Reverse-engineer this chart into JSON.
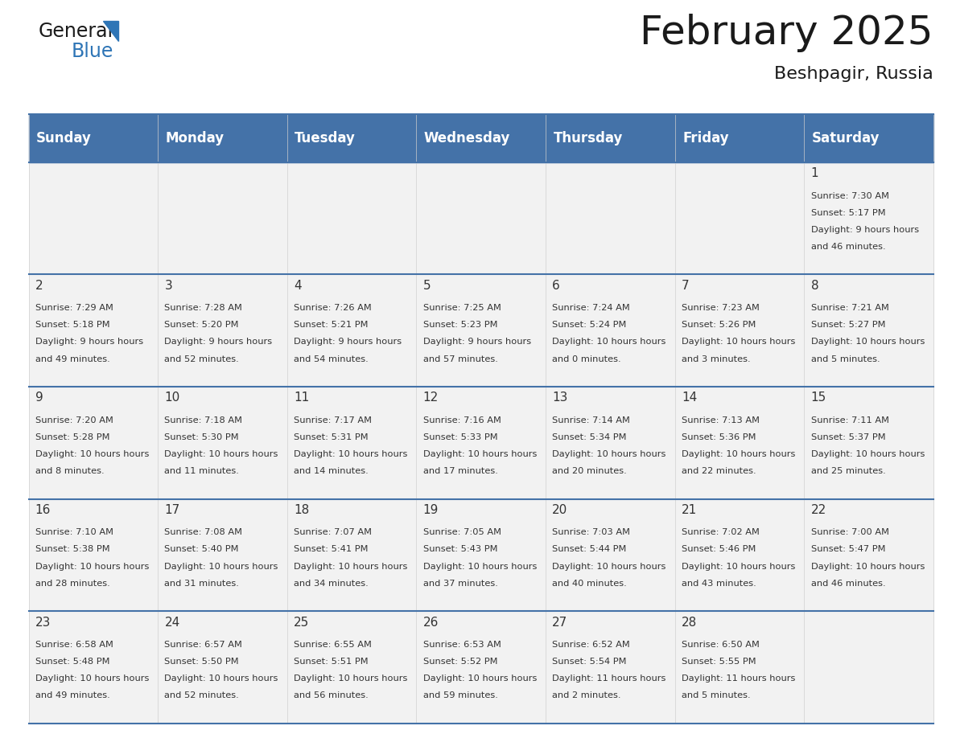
{
  "title": "February 2025",
  "subtitle": "Beshpagir, Russia",
  "days_of_week": [
    "Sunday",
    "Monday",
    "Tuesday",
    "Wednesday",
    "Thursday",
    "Friday",
    "Saturday"
  ],
  "header_bg": "#4472A8",
  "header_text_color": "#FFFFFF",
  "cell_bg_light": "#F2F2F2",
  "cell_bg_white": "#FFFFFF",
  "border_color": "#4472A8",
  "text_color": "#333333",
  "title_color": "#1a1a1a",
  "calendar_data": [
    [
      null,
      null,
      null,
      null,
      null,
      null,
      {
        "day": 1,
        "sunrise": "7:30 AM",
        "sunset": "5:17 PM",
        "daylight": "9 hours and 46 minutes."
      }
    ],
    [
      {
        "day": 2,
        "sunrise": "7:29 AM",
        "sunset": "5:18 PM",
        "daylight": "9 hours and 49 minutes."
      },
      {
        "day": 3,
        "sunrise": "7:28 AM",
        "sunset": "5:20 PM",
        "daylight": "9 hours and 52 minutes."
      },
      {
        "day": 4,
        "sunrise": "7:26 AM",
        "sunset": "5:21 PM",
        "daylight": "9 hours and 54 minutes."
      },
      {
        "day": 5,
        "sunrise": "7:25 AM",
        "sunset": "5:23 PM",
        "daylight": "9 hours and 57 minutes."
      },
      {
        "day": 6,
        "sunrise": "7:24 AM",
        "sunset": "5:24 PM",
        "daylight": "10 hours and 0 minutes."
      },
      {
        "day": 7,
        "sunrise": "7:23 AM",
        "sunset": "5:26 PM",
        "daylight": "10 hours and 3 minutes."
      },
      {
        "day": 8,
        "sunrise": "7:21 AM",
        "sunset": "5:27 PM",
        "daylight": "10 hours and 5 minutes."
      }
    ],
    [
      {
        "day": 9,
        "sunrise": "7:20 AM",
        "sunset": "5:28 PM",
        "daylight": "10 hours and 8 minutes."
      },
      {
        "day": 10,
        "sunrise": "7:18 AM",
        "sunset": "5:30 PM",
        "daylight": "10 hours and 11 minutes."
      },
      {
        "day": 11,
        "sunrise": "7:17 AM",
        "sunset": "5:31 PM",
        "daylight": "10 hours and 14 minutes."
      },
      {
        "day": 12,
        "sunrise": "7:16 AM",
        "sunset": "5:33 PM",
        "daylight": "10 hours and 17 minutes."
      },
      {
        "day": 13,
        "sunrise": "7:14 AM",
        "sunset": "5:34 PM",
        "daylight": "10 hours and 20 minutes."
      },
      {
        "day": 14,
        "sunrise": "7:13 AM",
        "sunset": "5:36 PM",
        "daylight": "10 hours and 22 minutes."
      },
      {
        "day": 15,
        "sunrise": "7:11 AM",
        "sunset": "5:37 PM",
        "daylight": "10 hours and 25 minutes."
      }
    ],
    [
      {
        "day": 16,
        "sunrise": "7:10 AM",
        "sunset": "5:38 PM",
        "daylight": "10 hours and 28 minutes."
      },
      {
        "day": 17,
        "sunrise": "7:08 AM",
        "sunset": "5:40 PM",
        "daylight": "10 hours and 31 minutes."
      },
      {
        "day": 18,
        "sunrise": "7:07 AM",
        "sunset": "5:41 PM",
        "daylight": "10 hours and 34 minutes."
      },
      {
        "day": 19,
        "sunrise": "7:05 AM",
        "sunset": "5:43 PM",
        "daylight": "10 hours and 37 minutes."
      },
      {
        "day": 20,
        "sunrise": "7:03 AM",
        "sunset": "5:44 PM",
        "daylight": "10 hours and 40 minutes."
      },
      {
        "day": 21,
        "sunrise": "7:02 AM",
        "sunset": "5:46 PM",
        "daylight": "10 hours and 43 minutes."
      },
      {
        "day": 22,
        "sunrise": "7:00 AM",
        "sunset": "5:47 PM",
        "daylight": "10 hours and 46 minutes."
      }
    ],
    [
      {
        "day": 23,
        "sunrise": "6:58 AM",
        "sunset": "5:48 PM",
        "daylight": "10 hours and 49 minutes."
      },
      {
        "day": 24,
        "sunrise": "6:57 AM",
        "sunset": "5:50 PM",
        "daylight": "10 hours and 52 minutes."
      },
      {
        "day": 25,
        "sunrise": "6:55 AM",
        "sunset": "5:51 PM",
        "daylight": "10 hours and 56 minutes."
      },
      {
        "day": 26,
        "sunrise": "6:53 AM",
        "sunset": "5:52 PM",
        "daylight": "10 hours and 59 minutes."
      },
      {
        "day": 27,
        "sunrise": "6:52 AM",
        "sunset": "5:54 PM",
        "daylight": "11 hours and 2 minutes."
      },
      {
        "day": 28,
        "sunrise": "6:50 AM",
        "sunset": "5:55 PM",
        "daylight": "11 hours and 5 minutes."
      },
      null
    ]
  ],
  "logo_text_general": "General",
  "logo_text_blue": "Blue",
  "logo_triangle_color": "#2E75B6"
}
